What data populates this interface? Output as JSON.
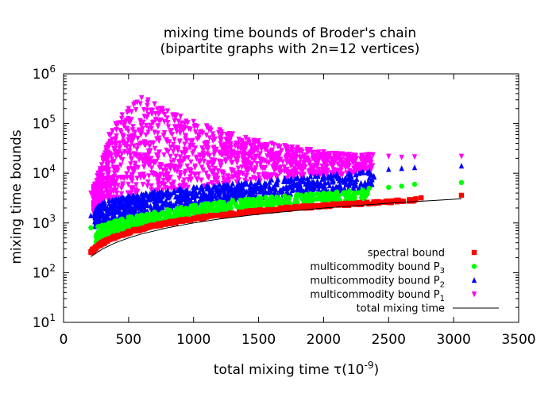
{
  "chart_data": {
    "type": "scatter",
    "title_line1": "mixing time bounds of Broder's chain",
    "title_line2": "(bipartite graphs with 2n=12 vertices)",
    "xlabel": "total mixing time τ(10",
    "xlabel_sup": "-9",
    "xlabel_end": ")",
    "ylabel": "mixing time bounds",
    "xlim": [
      0,
      3500
    ],
    "ylim_log10": [
      1,
      6
    ],
    "x_ticks": [
      0,
      500,
      1000,
      1500,
      2000,
      2500,
      3000,
      3500
    ],
    "x_tick_labels": [
      "0",
      "500",
      "1000",
      "1500",
      "2000",
      "2500",
      "3000",
      "3500"
    ],
    "y_ticks_exp": [
      1,
      2,
      3,
      4,
      5,
      6
    ],
    "y_tick_base": "10",
    "y_tick_exponents": [
      "1",
      "2",
      "3",
      "4",
      "5",
      "6"
    ],
    "legend_position": "bottom-right",
    "series": [
      {
        "name": "spectral bound",
        "name_sub": "",
        "marker": "square",
        "color": "#ff0000",
        "x": [
          210,
          250,
          300,
          350,
          400,
          450,
          500,
          550,
          600,
          700,
          800,
          900,
          1000,
          1100,
          1200,
          1300,
          1400,
          1500,
          1600,
          1700,
          1800,
          1900,
          2000,
          2100,
          2200,
          2300,
          2400,
          2500,
          2600,
          2700,
          2750,
          3060
        ],
        "y": [
          260,
          320,
          390,
          460,
          520,
          580,
          640,
          700,
          760,
          870,
          980,
          1090,
          1200,
          1310,
          1410,
          1520,
          1620,
          1720,
          1830,
          1930,
          2020,
          2110,
          2200,
          2290,
          2380,
          2460,
          2550,
          2640,
          2740,
          2880,
          3200,
          3600
        ]
      },
      {
        "name": "multicommodity bound P",
        "name_sub": "3",
        "marker": "circle",
        "color": "#00ff00",
        "x": [
          210,
          300,
          350,
          400,
          450,
          500,
          600,
          700,
          800,
          900,
          1000,
          1100,
          1200,
          1300,
          1400,
          1500,
          1600,
          1700,
          1800,
          1900,
          2000,
          2100,
          2200,
          2300,
          2350,
          2500,
          2600,
          2700,
          3060
        ],
        "y": [
          800,
          900,
          1000,
          1100,
          1200,
          1300,
          1450,
          1650,
          1850,
          2050,
          2250,
          2450,
          2650,
          2850,
          3000,
          3200,
          3350,
          3500,
          3700,
          3850,
          4000,
          4200,
          4400,
          4600,
          5000,
          5200,
          5500,
          6000,
          6500
        ]
      },
      {
        "name": "multicommodity bound P",
        "name_sub": "2",
        "marker": "triangle-up",
        "color": "#0000ff",
        "x": [
          210,
          260,
          300,
          350,
          400,
          450,
          500,
          600,
          700,
          800,
          900,
          1000,
          1100,
          1200,
          1300,
          1400,
          1500,
          1600,
          1700,
          1800,
          1900,
          2000,
          2100,
          2200,
          2300,
          2350,
          2500,
          2600,
          2700,
          3060
        ],
        "y": [
          1400,
          2100,
          2500,
          2800,
          3000,
          3200,
          3400,
          3800,
          4200,
          4500,
          4800,
          5200,
          5500,
          5900,
          6200,
          6600,
          7000,
          7400,
          7800,
          8200,
          8600,
          9000,
          9400,
          9800,
          10500,
          11000,
          12000,
          12500,
          13000,
          14000
        ]
      },
      {
        "name": "multicommodity bound P",
        "name_sub": "1",
        "marker": "triangle-down",
        "color": "#ff00ff",
        "x": [
          210,
          260,
          300,
          350,
          400,
          450,
          500,
          550,
          600,
          650,
          700,
          800,
          900,
          1000,
          1100,
          1200,
          1300,
          1400,
          1500,
          1600,
          1700,
          1800,
          1900,
          2000,
          2100,
          2200,
          2300,
          2350,
          2500,
          2600,
          2700,
          3060
        ],
        "y": [
          4000,
          9000,
          20000,
          60000,
          100000,
          150000,
          200000,
          260000,
          330000,
          300000,
          250000,
          180000,
          140000,
          110000,
          90000,
          75000,
          62000,
          52000,
          45000,
          40000,
          36000,
          33000,
          30000,
          27000,
          25000,
          24000,
          23000,
          24000,
          22000,
          21000,
          21500,
          22000
        ]
      }
    ],
    "curve": {
      "name": "total mixing time",
      "color": "#000000",
      "x": [
        210,
        300,
        400,
        500,
        600,
        800,
        1000,
        1200,
        1500,
        2000,
        2500,
        3060
      ],
      "y": [
        210,
        300,
        400,
        500,
        600,
        800,
        1000,
        1200,
        1500,
        2000,
        2500,
        3060
      ]
    }
  }
}
